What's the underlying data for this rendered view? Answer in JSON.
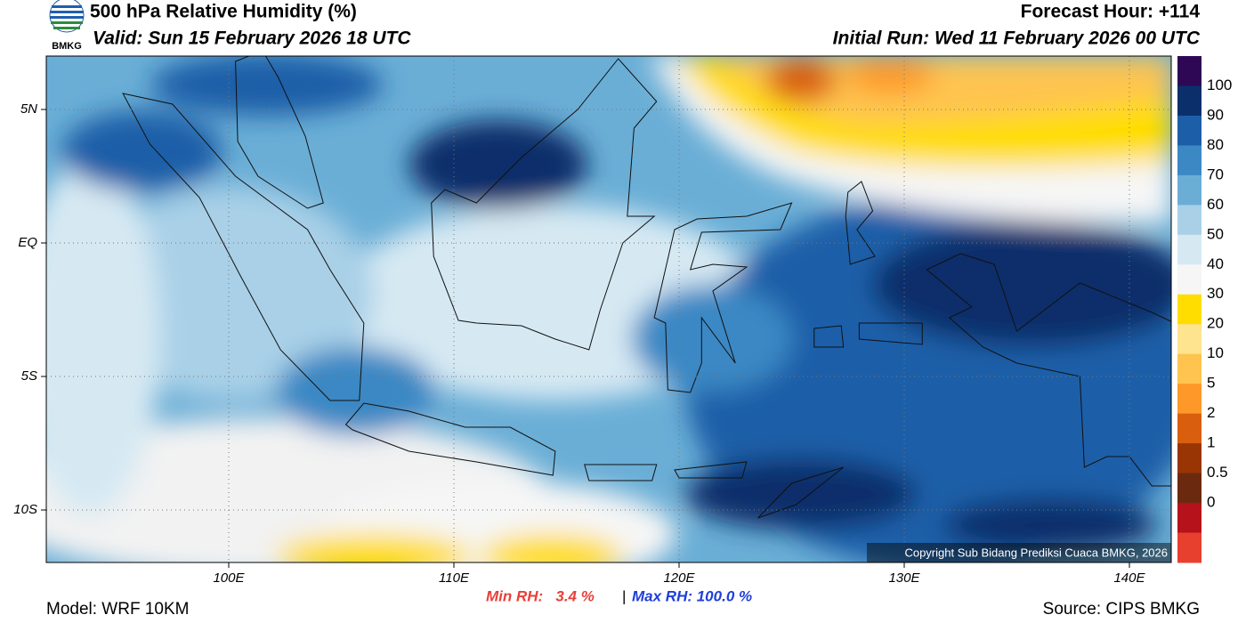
{
  "header": {
    "title": "500 hPa Relative Humidity (%)",
    "valid": "Valid: Sun 15 February 2026 18 UTC",
    "forecast_hour": "Forecast Hour: +114",
    "initial_run": "Initial Run: Wed 11 February 2026 00 UTC",
    "logo_text": "BMKG"
  },
  "map": {
    "lat_labels": [
      "5N",
      "EQ",
      "5S",
      "10S"
    ],
    "lon_labels": [
      "100E",
      "110E",
      "120E",
      "130E",
      "140E"
    ],
    "copyright": "Copyright Sub Bidang Prediksi Cuaca BMKG, 2026"
  },
  "colorbar": {
    "labels": [
      "100",
      "90",
      "80",
      "70",
      "60",
      "50",
      "40",
      "30",
      "20",
      "10",
      "5",
      "2",
      "1",
      "0.5",
      "0"
    ],
    "colors": [
      "#2e0854",
      "#0a2f6b",
      "#1d5ea8",
      "#3b88c4",
      "#6aaed6",
      "#a9d0e7",
      "#d6e9f3",
      "#f6f6f6",
      "#ffdd00",
      "#ffe48f",
      "#fec44f",
      "#fe9929",
      "#d95f0e",
      "#993404",
      "#6b2a10",
      "#b5121b",
      "#e8402f"
    ]
  },
  "footer": {
    "model": "Model: WRF 10KM",
    "min_rh": "Min RH:   3.4 %",
    "separator": "|",
    "max_rh": "Max RH: 100.0 %",
    "source": "Source: CIPS BMKG"
  }
}
